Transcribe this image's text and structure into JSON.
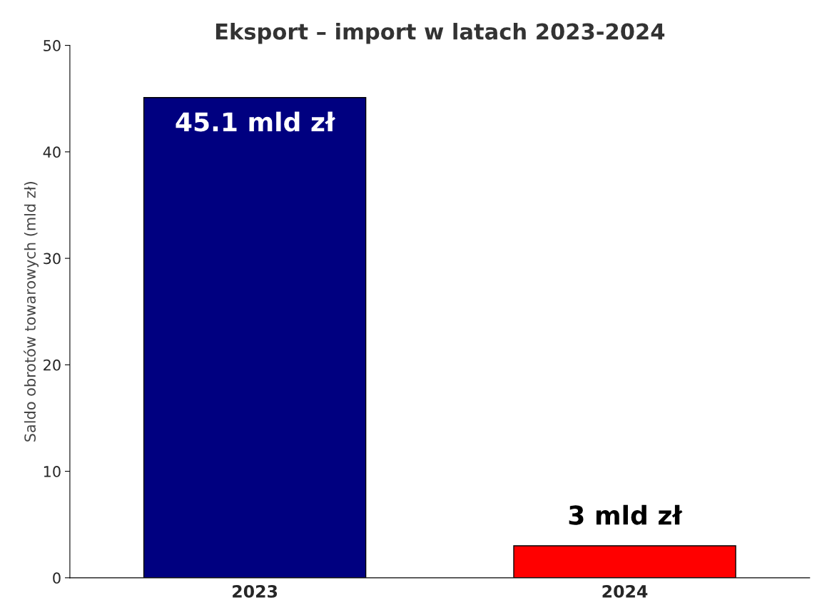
{
  "chart_data": {
    "type": "bar",
    "title": "Eksport – import w latach 2023-2024",
    "ylabel": "Saldo obrotów towarowych (mld zł)",
    "categories": [
      "2023",
      "2024"
    ],
    "values": [
      45.1,
      3
    ],
    "colors": [
      "#000080",
      "#ff0000"
    ],
    "value_labels": [
      "45.1 mld zł",
      "3 mld zł"
    ],
    "ylim": [
      0,
      50
    ],
    "yticks": [
      0,
      10,
      20,
      30,
      40,
      50
    ],
    "grid": false
  }
}
